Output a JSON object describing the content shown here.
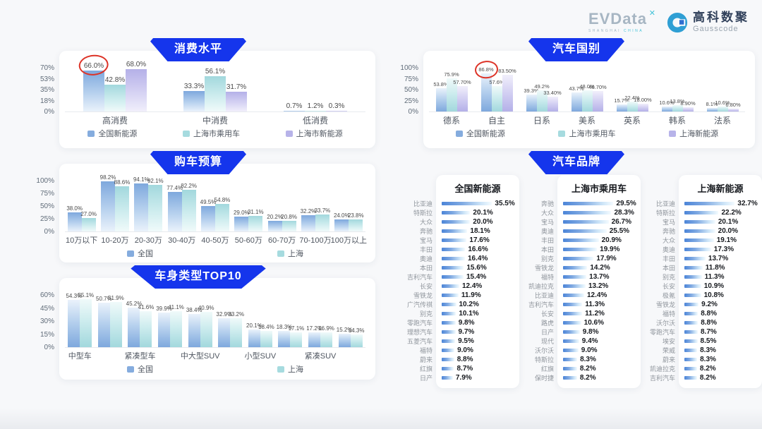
{
  "header": {
    "logo_primary": "EVData",
    "logo_primary_mark": "spark-x-icon",
    "logo_primary_sub_1": "SHANGHAI",
    "logo_primary_sub_2": "CHINA",
    "logo_secondary_cn": "高科数聚",
    "logo_secondary_en": "Gausscode"
  },
  "colors": {
    "banner_blue": "#1535ec",
    "series_blue": "#85acde",
    "series_teal": "#a6dbdf",
    "series_purple": "#b7b3e9",
    "brand_bar_blue": "#4c85d8",
    "annotation_red": "#dd3327"
  },
  "chart_data": [
    {
      "type": "bar",
      "title": "消费水平",
      "categories": [
        "高消费",
        "中消费",
        "低消费"
      ],
      "series": [
        {
          "name": "全国新能源",
          "color_key": "blue",
          "values": [
            66.0,
            33.3,
            0.7
          ],
          "labels": [
            "66.0%",
            "33.3%",
            "0.7%"
          ]
        },
        {
          "name": "上海市乘用车",
          "color_key": "teal",
          "values": [
            42.8,
            56.1,
            1.2
          ],
          "labels": [
            "42.8%",
            "56.1%",
            "1.2%"
          ]
        },
        {
          "name": "上海市新能源",
          "color_key": "purple",
          "values": [
            68.0,
            31.7,
            0.3
          ],
          "labels": [
            "68.0%",
            "31.7%",
            "0.3%"
          ]
        }
      ],
      "ylim": [
        0,
        70
      ],
      "yticks": [
        "0%",
        "18%",
        "35%",
        "53%",
        "70%"
      ],
      "legend_position": "bottom",
      "grid": false,
      "annotation": {
        "style": "red-circle",
        "series": 0,
        "category": 0,
        "label": "66.0%"
      }
    },
    {
      "type": "bar",
      "title": "汽车国别",
      "categories": [
        "德系",
        "自主",
        "日系",
        "美系",
        "英系",
        "韩系",
        "法系"
      ],
      "series": [
        {
          "name": "全国新能源",
          "color_key": "blue",
          "values": [
            53.8,
            86.8,
            39.3,
            43.7,
            15.7,
            10.6,
            8.1
          ],
          "labels": [
            "53.8%",
            "86.8%",
            "39.3%",
            "43.7%",
            "15.7%",
            "10.6%",
            "8.1%"
          ]
        },
        {
          "name": "上海市乘用车",
          "color_key": "teal",
          "values": [
            75.9,
            57.6,
            49.2,
            48.0,
            22.4,
            13.8,
            10.6
          ],
          "labels": [
            "75.9%",
            "57.6%",
            "49.2%",
            "48.0%",
            "22.4%",
            "13.8%",
            "10.6%"
          ]
        },
        {
          "name": "上海新能源",
          "color_key": "purple",
          "values": [
            57.7,
            83.5,
            33.4,
            46.7,
            18.0,
            8.9,
            6.8
          ],
          "labels": [
            "57.70%",
            "83.50%",
            "33.40%",
            "46.70%",
            "18.00%",
            "8.90%",
            "6.80%"
          ]
        }
      ],
      "ylim": [
        0,
        100
      ],
      "yticks": [
        "0%",
        "25%",
        "50%",
        "75%",
        "100%"
      ],
      "legend_position": "bottom",
      "grid": false,
      "annotation": {
        "style": "red-circle",
        "series": 0,
        "category": 1,
        "label": "86.8%"
      }
    },
    {
      "type": "bar",
      "title": "购车预算",
      "categories": [
        "10万以下",
        "10-20万",
        "20-30万",
        "30-40万",
        "40-50万",
        "50-60万",
        "60-70万",
        "70-100万",
        "100万以上"
      ],
      "series": [
        {
          "name": "全国",
          "color_key": "blue",
          "values": [
            38.0,
            98.2,
            94.1,
            77.4,
            49.5,
            29.0,
            20.2,
            32.2,
            24.0
          ],
          "labels": [
            "38.0%",
            "98.2%",
            "94.1%",
            "77.4%",
            "49.5%",
            "29.0%",
            "20.2%",
            "32.2%",
            "24.0%"
          ]
        },
        {
          "name": "上海",
          "color_key": "teal",
          "values": [
            27.0,
            88.6,
            92.1,
            82.2,
            54.8,
            31.1,
            20.8,
            33.7,
            23.8
          ],
          "labels": [
            "27.0%",
            "88.6%",
            "92.1%",
            "82.2%",
            "54.8%",
            "31.1%",
            "20.8%",
            "33.7%",
            "23.8%"
          ]
        }
      ],
      "ylim": [
        0,
        100
      ],
      "yticks": [
        "0%",
        "25%",
        "50%",
        "75%",
        "100%"
      ],
      "legend_position": "bottom",
      "grid": false
    },
    {
      "type": "bar",
      "title": "车身类型TOP10",
      "categories": [
        "中型车",
        "",
        "紧凑型车",
        "",
        "中大型SUV",
        "",
        "小型SUV",
        "",
        "紧凑SUV",
        ""
      ],
      "series": [
        {
          "name": "全国",
          "color_key": "blue",
          "values": [
            54.3,
            50.7,
            45.2,
            39.9,
            38.4,
            32.9,
            20.1,
            18.3,
            17.2,
            15.2
          ],
          "labels": [
            "54.3%",
            "50.7%",
            "45.2%",
            "39.9%",
            "38.4%",
            "32.9%",
            "20.1%",
            "18.3%",
            "17.2%",
            "15.2%"
          ]
        },
        {
          "name": "上海",
          "color_key": "teal",
          "values": [
            55.1,
            51.9,
            41.6,
            41.1,
            40.9,
            33.2,
            18.4,
            17.1,
            16.9,
            14.3
          ],
          "labels": [
            "55.1%",
            "51.9%",
            "41.6%",
            "41.1%",
            "40.9%",
            "33.2%",
            "18.4%",
            "17.1%",
            "16.9%",
            "14.3%"
          ]
        }
      ],
      "ylim": [
        0,
        60
      ],
      "yticks": [
        "0%",
        "15%",
        "30%",
        "45%",
        "60%"
      ],
      "legend_position": "bottom",
      "grid": false
    },
    {
      "type": "bar-horizontal",
      "title": "汽车品牌",
      "columns": [
        {
          "title": "全国新能源",
          "labels": [
            "比亚迪",
            "特斯拉",
            "大众",
            "奔驰",
            "宝马",
            "丰田",
            "奥迪",
            "本田",
            "吉利汽车",
            "长安",
            "雪铁龙",
            "广汽传祺",
            "别克",
            "零跑汽车",
            "理想汽车",
            "五菱汽车",
            "福特",
            "蔚来",
            "红旗",
            "日产"
          ],
          "values": [
            35.5,
            20.1,
            20.0,
            18.1,
            17.6,
            16.6,
            16.4,
            15.6,
            15.4,
            12.4,
            11.9,
            10.2,
            10.1,
            9.8,
            9.7,
            9.5,
            9.0,
            8.8,
            8.7,
            7.9
          ]
        },
        {
          "title": "上海市乘用车",
          "labels": [
            "奔驰",
            "大众",
            "宝马",
            "奥迪",
            "丰田",
            "本田",
            "别克",
            "雪铁龙",
            "福特",
            "凯迪拉克",
            "比亚迪",
            "吉利汽车",
            "长安",
            "路虎",
            "日产",
            "现代",
            "沃尔沃",
            "特斯拉",
            "红旗",
            "保时捷"
          ],
          "values": [
            29.5,
            28.3,
            26.7,
            25.5,
            20.9,
            19.9,
            17.9,
            14.2,
            13.7,
            13.2,
            12.4,
            11.3,
            11.2,
            10.6,
            9.8,
            9.4,
            9.0,
            8.3,
            8.2,
            8.2
          ]
        },
        {
          "title": "上海新能源",
          "labels": [
            "比亚迪",
            "特斯拉",
            "宝马",
            "奔驰",
            "大众",
            "奥迪",
            "丰田",
            "本田",
            "别克",
            "长安",
            "极氪",
            "雪铁龙",
            "福特",
            "沃尔沃",
            "零跑汽车",
            "埃安",
            "荣威",
            "蔚来",
            "凯迪拉克",
            "吉利汽车"
          ],
          "values": [
            32.7,
            22.2,
            20.1,
            20.0,
            19.1,
            17.3,
            13.7,
            11.8,
            11.3,
            10.9,
            10.8,
            9.2,
            8.8,
            8.8,
            8.7,
            8.5,
            8.3,
            8.3,
            8.2,
            8.2
          ]
        }
      ]
    }
  ]
}
